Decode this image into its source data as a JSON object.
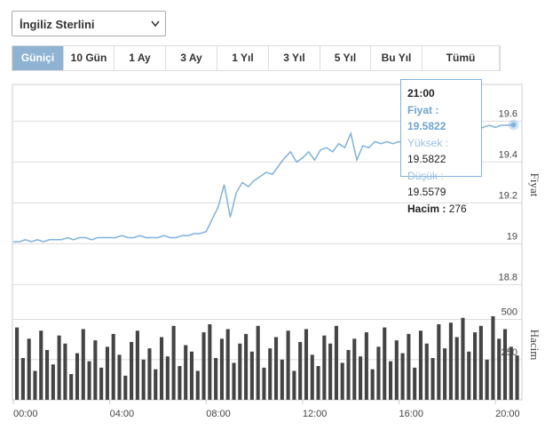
{
  "dropdown": "İngiliz Sterlini",
  "tabs": [
    "Güniçi",
    "10 Gün",
    "1 Ay",
    "3 Ay",
    "1 Yıl",
    "3 Yıl",
    "5 Yıl",
    "Bu Yıl",
    "Tümü"
  ],
  "active_tab": 0,
  "tooltip": {
    "title": "21:00",
    "rows": [
      {
        "label": "Fiyat :",
        "value": "19.5822"
      },
      {
        "label": "Yüksek :",
        "value": "19.5822"
      },
      {
        "label": "Düşük :",
        "value": "19.5579"
      },
      {
        "label": "Hacim :",
        "value": "276"
      }
    ]
  },
  "chart_data": [
    {
      "type": "line",
      "y_label": "Fiyat",
      "color": "#7fb2e0",
      "grid": true,
      "xlim": [
        0,
        21.1
      ],
      "ylim": [
        18.78,
        19.78
      ],
      "yticks": [
        18.8,
        19,
        19.2,
        19.4,
        19.6
      ],
      "x": [
        0,
        0.25,
        0.5,
        0.75,
        1,
        1.25,
        1.5,
        1.75,
        2,
        2.25,
        2.5,
        2.75,
        3,
        3.25,
        3.5,
        3.75,
        4,
        4.25,
        4.5,
        4.75,
        5,
        5.25,
        5.5,
        5.75,
        6,
        6.25,
        6.5,
        6.75,
        7,
        7.25,
        7.5,
        7.75,
        8,
        8.25,
        8.5,
        8.75,
        9,
        9.25,
        9.5,
        9.75,
        10,
        10.25,
        10.5,
        10.75,
        11,
        11.25,
        11.5,
        11.75,
        12,
        12.25,
        12.5,
        12.75,
        13,
        13.25,
        13.5,
        13.75,
        14,
        14.25,
        14.5,
        14.75,
        15,
        15.25,
        15.5,
        15.75,
        16,
        16.25,
        16.5,
        16.75,
        17,
        17.25,
        17.5,
        17.75,
        18,
        18.25,
        18.5,
        18.75,
        19,
        19.25,
        19.5,
        19.75,
        20,
        20.25,
        20.5,
        20.75
      ],
      "values": [
        19.01,
        19.01,
        19.02,
        19.01,
        19.02,
        19.01,
        19.02,
        19.02,
        19.02,
        19.03,
        19.02,
        19.03,
        19.03,
        19.02,
        19.03,
        19.03,
        19.03,
        19.03,
        19.04,
        19.03,
        19.03,
        19.04,
        19.03,
        19.03,
        19.03,
        19.04,
        19.03,
        19.03,
        19.04,
        19.04,
        19.05,
        19.05,
        19.06,
        19.12,
        19.18,
        19.29,
        19.13,
        19.25,
        19.3,
        19.28,
        19.31,
        19.33,
        19.35,
        19.34,
        19.38,
        19.42,
        19.45,
        19.4,
        19.42,
        19.45,
        19.41,
        19.46,
        19.47,
        19.45,
        19.49,
        19.47,
        19.54,
        19.41,
        19.48,
        19.47,
        19.5,
        19.49,
        19.5,
        19.49,
        19.5,
        19.49,
        19.52,
        19.51,
        19.52,
        19.54,
        19.55,
        19.53,
        19.55,
        19.56,
        19.54,
        19.55,
        19.57,
        19.56,
        19.57,
        19.58,
        19.57,
        19.58,
        19.58,
        19.5822
      ]
    },
    {
      "type": "bar",
      "y_label": "Hacim",
      "color": "#444444",
      "grid": true,
      "xlim": [
        0,
        21.1
      ],
      "ylim": [
        0,
        680
      ],
      "yticks": [
        250,
        500
      ],
      "xticks": [
        {
          "value": 0,
          "label": "00:00"
        },
        {
          "value": 4,
          "label": "04:00"
        },
        {
          "value": 8,
          "label": "08:00"
        },
        {
          "value": 12,
          "label": "12:00"
        },
        {
          "value": 16,
          "label": "16:00"
        },
        {
          "value": 20,
          "label": "20:00"
        }
      ],
      "x": [
        0,
        0.25,
        0.5,
        0.75,
        1,
        1.25,
        1.5,
        1.75,
        2,
        2.25,
        2.5,
        2.75,
        3,
        3.25,
        3.5,
        3.75,
        4,
        4.25,
        4.5,
        4.75,
        5,
        5.25,
        5.5,
        5.75,
        6,
        6.25,
        6.5,
        6.75,
        7,
        7.25,
        7.5,
        7.75,
        8,
        8.25,
        8.5,
        8.75,
        9,
        9.25,
        9.5,
        9.75,
        10,
        10.25,
        10.5,
        10.75,
        11,
        11.25,
        11.5,
        11.75,
        12,
        12.25,
        12.5,
        12.75,
        13,
        13.25,
        13.5,
        13.75,
        14,
        14.25,
        14.5,
        14.75,
        15,
        15.25,
        15.5,
        15.75,
        16,
        16.25,
        16.5,
        16.75,
        17,
        17.25,
        17.5,
        17.75,
        18,
        18.25,
        18.5,
        18.75,
        19,
        19.25,
        19.5,
        19.75,
        20,
        20.25,
        20.5,
        20.75
      ],
      "values": [
        450,
        260,
        380,
        180,
        430,
        310,
        220,
        400,
        350,
        160,
        290,
        440,
        240,
        370,
        200,
        330,
        410,
        280,
        150,
        360,
        430,
        250,
        320,
        190,
        390,
        270,
        460,
        210,
        340,
        300,
        180,
        420,
        470,
        260,
        380,
        440,
        230,
        350,
        410,
        300,
        460,
        200,
        320,
        390,
        250,
        430,
        180,
        360,
        440,
        280,
        210,
        400,
        350,
        460,
        230,
        310,
        380,
        270,
        420,
        190,
        330,
        450,
        240,
        370,
        290,
        410,
        200,
        430,
        350,
        260,
        470,
        320,
        480,
        390,
        510,
        300,
        420,
        460,
        250,
        520,
        380,
        440,
        330,
        276
      ]
    }
  ]
}
